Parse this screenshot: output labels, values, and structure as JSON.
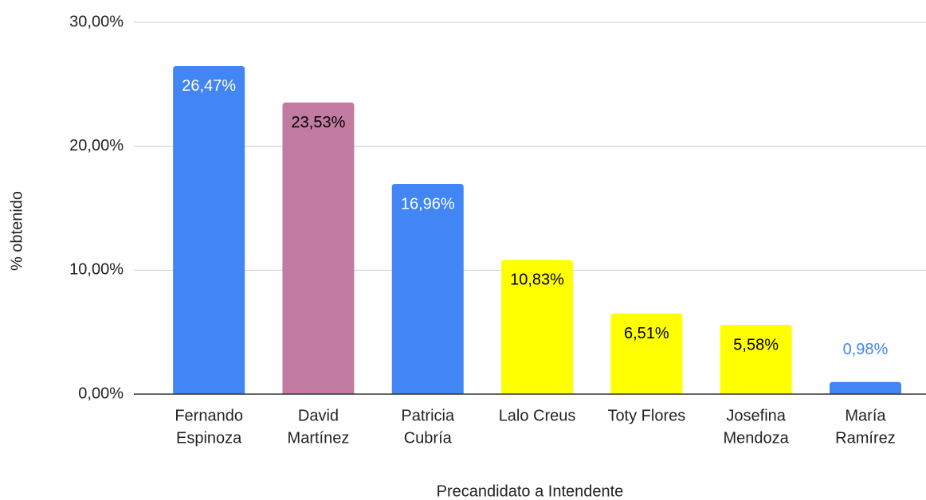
{
  "chart_data": {
    "type": "bar",
    "x_label": "Precandidato a Intendente",
    "y_label": "% obtenido",
    "categories": [
      [
        "Fernando",
        "Espinoza"
      ],
      [
        "David",
        "Martínez"
      ],
      [
        "Patricia",
        "Cubría"
      ],
      [
        "Lalo Creus"
      ],
      [
        "Toty Flores"
      ],
      [
        "Josefina",
        "Mendoza"
      ],
      [
        "María",
        "Ramírez"
      ]
    ],
    "values": [
      26.47,
      23.53,
      16.96,
      10.83,
      6.51,
      5.58,
      0.98
    ],
    "value_labels": [
      "26,47%",
      "23,53%",
      "16,96%",
      "10,83%",
      "6,51%",
      "5,58%",
      "0,98%"
    ],
    "colors": [
      "#4285f4",
      "#c27ba0",
      "#4285f4",
      "#ffff00",
      "#ffff00",
      "#ffff00",
      "#4285f4"
    ],
    "value_label_colors": [
      "#ffffff",
      "#000000",
      "#ffffff",
      "#000000",
      "#000000",
      "#000000",
      "#4285f4"
    ],
    "ylim": [
      0,
      30
    ],
    "yticks": [
      {
        "value": 0,
        "label": "0,00%"
      },
      {
        "value": 10,
        "label": "10,00%"
      },
      {
        "value": 20,
        "label": "20,00%"
      },
      {
        "value": 30,
        "label": "30,00%"
      }
    ],
    "grid": true
  }
}
